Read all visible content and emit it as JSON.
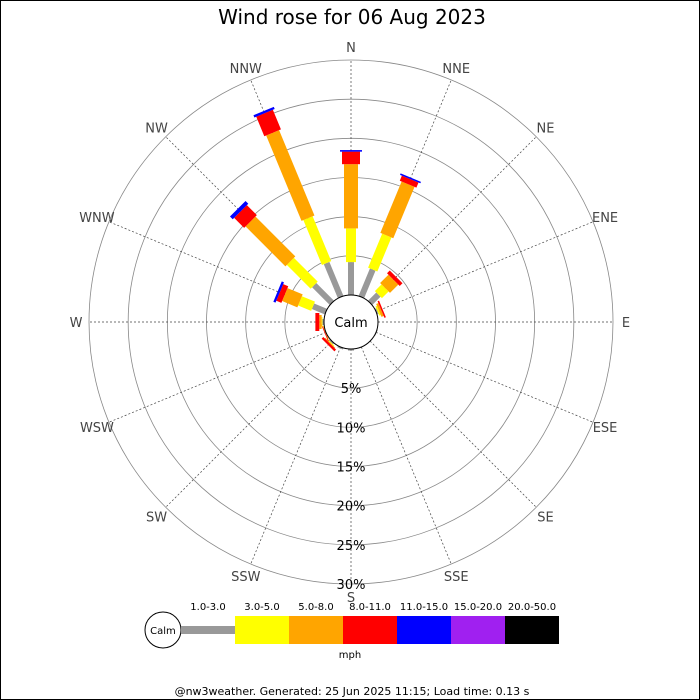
{
  "chart_data": {
    "type": "windrose",
    "title": "Wind rose for 06 Aug 2023",
    "directions": [
      "N",
      "NNE",
      "NE",
      "ENE",
      "E",
      "ESE",
      "SE",
      "SSE",
      "S",
      "SSW",
      "SW",
      "WSW",
      "W",
      "WNW",
      "NW",
      "NNW"
    ],
    "rings": [
      5,
      10,
      15,
      20,
      25,
      30
    ],
    "ring_labels": [
      "5%",
      "10%",
      "15%",
      "20%",
      "25%",
      "30%"
    ],
    "rmax": 30,
    "calm_label": "Calm",
    "speed_bins": [
      {
        "label": "1.0-3.0",
        "color": "#999999"
      },
      {
        "label": "3.0-5.0",
        "color": "#ffff00"
      },
      {
        "label": "5.0-8.0",
        "color": "#ffa500"
      },
      {
        "label": "8.0-11.0",
        "color": "#ff0000"
      },
      {
        "label": "11.0-15.0",
        "color": "#0000ff"
      },
      {
        "label": "15.0-20.0",
        "color": "#a020f0"
      },
      {
        "label": "20.0-50.0",
        "color": "#000000"
      }
    ],
    "units": "mph",
    "frequencies": [
      [
        4.2,
        4.3,
        8.2,
        1.6,
        0.2,
        0,
        0
      ],
      [
        3.8,
        4.7,
        7.1,
        0.7,
        0.2,
        0,
        0
      ],
      [
        1.5,
        1.2,
        1.5,
        0.5,
        0,
        0,
        0
      ],
      [
        0.2,
        0.2,
        0.3,
        0.2,
        0,
        0,
        0
      ],
      [
        0,
        0,
        0,
        0,
        0,
        0,
        0
      ],
      [
        0.1,
        0,
        0,
        0,
        0,
        0,
        0
      ],
      [
        0,
        0,
        0,
        0,
        0,
        0,
        0
      ],
      [
        0,
        0,
        0,
        0,
        0,
        0,
        0
      ],
      [
        0.2,
        0,
        0,
        0,
        0,
        0,
        0
      ],
      [
        0.2,
        0,
        0,
        0,
        0,
        0,
        0
      ],
      [
        0.2,
        0.1,
        0.1,
        0.3,
        0,
        0,
        0
      ],
      [
        0,
        0,
        0.1,
        0.1,
        0,
        0,
        0
      ],
      [
        0.2,
        0.1,
        0.3,
        0.5,
        0,
        0,
        0
      ],
      [
        1.8,
        1.8,
        2.1,
        0.7,
        0.3,
        0,
        0
      ],
      [
        3.2,
        4.3,
        7.2,
        1.8,
        0.5,
        0,
        0
      ],
      [
        4.7,
        6.2,
        11.8,
        2.7,
        0.3,
        0,
        0
      ]
    ]
  },
  "footer": "@nw3weather.  Generated: 25 Jun 2025 11:15; Load time: 0.13 s"
}
